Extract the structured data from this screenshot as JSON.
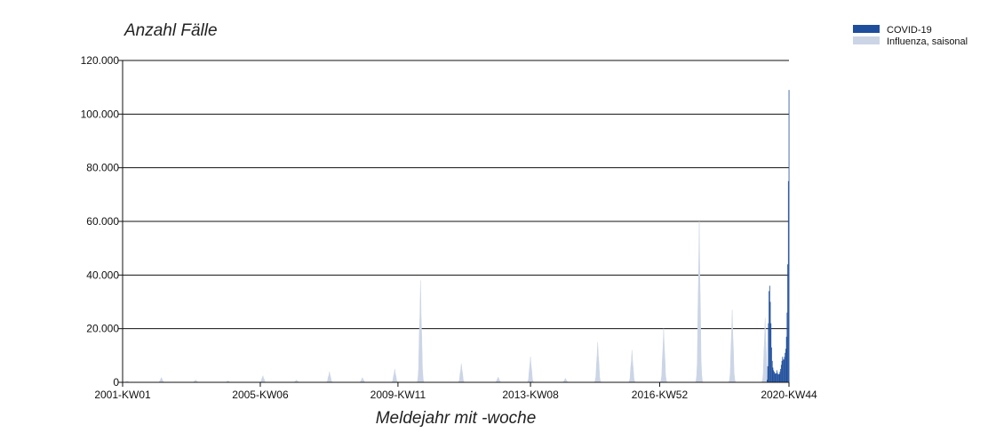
{
  "chart_data": {
    "type": "area",
    "title": "",
    "ylabel": "Anzahl Fälle",
    "xlabel": "Meldejahr mit -woche",
    "x_range": [
      "2001-KW01",
      "2020-KW44"
    ],
    "x_ticks": [
      "2001-KW01",
      "2005-KW06",
      "2009-KW11",
      "2013-KW08",
      "2016-KW52",
      "2020-KW44"
    ],
    "y_ticks": [
      "0",
      "20.000",
      "40.000",
      "60.000",
      "80.000",
      "100.000",
      "120.000"
    ],
    "ylim": [
      0,
      120000
    ],
    "grid": true,
    "legend_position": "top-right",
    "colors": {
      "covid": "#1f4e9c",
      "influenza": "#ccd5e6"
    },
    "series": [
      {
        "name": "COVID-19",
        "color": "#1f4e9c",
        "points": [
          [
            "2020-KW10",
            1000
          ],
          [
            "2020-KW11",
            6000
          ],
          [
            "2020-KW12",
            22000
          ],
          [
            "2020-KW13",
            34000
          ],
          [
            "2020-KW14",
            36000
          ],
          [
            "2020-KW15",
            30000
          ],
          [
            "2020-KW16",
            22000
          ],
          [
            "2020-KW17",
            13000
          ],
          [
            "2020-KW18",
            8000
          ],
          [
            "2020-KW19",
            5500
          ],
          [
            "2020-KW20",
            4500
          ],
          [
            "2020-KW21",
            4000
          ],
          [
            "2020-KW22",
            3500
          ],
          [
            "2020-KW23",
            3200
          ],
          [
            "2020-KW24",
            3300
          ],
          [
            "2020-KW25",
            4500
          ],
          [
            "2020-KW26",
            3600
          ],
          [
            "2020-KW27",
            3000
          ],
          [
            "2020-KW28",
            3000
          ],
          [
            "2020-KW29",
            3200
          ],
          [
            "2020-KW30",
            4000
          ],
          [
            "2020-KW31",
            5000
          ],
          [
            "2020-KW32",
            6500
          ],
          [
            "2020-KW33",
            8000
          ],
          [
            "2020-KW34",
            9500
          ],
          [
            "2020-KW35",
            8500
          ],
          [
            "2020-KW36",
            8500
          ],
          [
            "2020-KW37",
            9500
          ],
          [
            "2020-KW38",
            11000
          ],
          [
            "2020-KW39",
            12500
          ],
          [
            "2020-KW40",
            17000
          ],
          [
            "2020-KW41",
            26000
          ],
          [
            "2020-KW42",
            44000
          ],
          [
            "2020-KW43",
            75000
          ],
          [
            "2020-KW44",
            109000
          ]
        ]
      },
      {
        "name": "Influenza, saisonal",
        "color": "#ccd5e6",
        "peaks": [
          {
            "week": "2001-KW08",
            "value": 500
          },
          {
            "week": "2002-KW09",
            "value": 1800
          },
          {
            "week": "2003-KW10",
            "value": 900
          },
          {
            "week": "2004-KW08",
            "value": 600
          },
          {
            "week": "2005-KW10",
            "value": 2500
          },
          {
            "week": "2006-KW10",
            "value": 900
          },
          {
            "week": "2007-KW09",
            "value": 4000
          },
          {
            "week": "2008-KW08",
            "value": 1800
          },
          {
            "week": "2009-KW06",
            "value": 5000
          },
          {
            "week": "2009-KW46",
            "value": 38000
          },
          {
            "week": "2011-KW05",
            "value": 7000
          },
          {
            "week": "2012-KW10",
            "value": 2000
          },
          {
            "week": "2013-KW08",
            "value": 9500
          },
          {
            "week": "2014-KW10",
            "value": 1500
          },
          {
            "week": "2015-KW08",
            "value": 15000
          },
          {
            "week": "2016-KW09",
            "value": 12000
          },
          {
            "week": "2017-KW06",
            "value": 20000
          },
          {
            "week": "2018-KW09",
            "value": 60000
          },
          {
            "week": "2019-KW08",
            "value": 27000
          },
          {
            "week": "2020-KW07",
            "value": 24000
          }
        ]
      }
    ]
  }
}
